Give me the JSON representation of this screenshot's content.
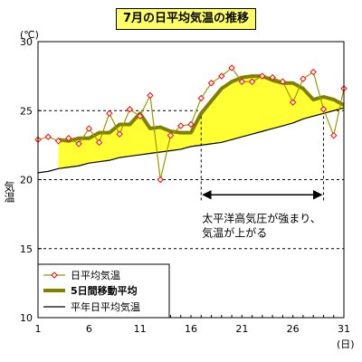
{
  "chart_data": {
    "type": "line",
    "title": "7月の日平均気温の推移",
    "ylabel": "気温",
    "y_unit": "(℃)",
    "x_unit": "(日)",
    "ylim": [
      10,
      30
    ],
    "xlim": [
      1,
      31
    ],
    "y_ticks": [
      10,
      15,
      20,
      25,
      30
    ],
    "x_ticks": [
      1,
      6,
      11,
      16,
      21,
      26,
      31
    ],
    "grid": "horizontal dashed at 15, 20, 25",
    "legend_position": "bottom-left",
    "x": [
      1,
      2,
      3,
      4,
      5,
      6,
      7,
      8,
      9,
      10,
      11,
      12,
      13,
      14,
      15,
      16,
      17,
      18,
      19,
      20,
      21,
      22,
      23,
      24,
      25,
      26,
      27,
      28,
      29,
      30,
      31
    ],
    "series": [
      {
        "name": "日平均気温",
        "color": "#999900",
        "marker_color": "#ff0000",
        "values": [
          22.9,
          23.1,
          22.8,
          23.0,
          22.6,
          23.7,
          22.7,
          24.8,
          23.3,
          25.1,
          24.6,
          26.1,
          20.0,
          23.2,
          23.9,
          24.0,
          25.9,
          27.0,
          27.5,
          28.1,
          27.1,
          27.1,
          27.5,
          27.4,
          27.1,
          25.6,
          27.3,
          27.8,
          25.1,
          23.2,
          26.6
        ]
      },
      {
        "name": "5日間移動平均",
        "color": "#808000",
        "values": [
          null,
          null,
          22.9,
          22.8,
          23.0,
          23.0,
          23.4,
          23.4,
          24.0,
          24.0,
          24.8,
          23.7,
          23.8,
          23.5,
          23.4,
          23.4,
          24.8,
          25.7,
          26.6,
          27.1,
          27.4,
          27.5,
          27.5,
          27.2,
          27.0,
          27.0,
          26.6,
          25.8,
          26.0,
          25.8,
          25.4
        ]
      },
      {
        "name": "平年日平均気温",
        "color": "#000000",
        "values": [
          20.5,
          20.6,
          20.8,
          20.9,
          21.0,
          21.2,
          21.3,
          21.4,
          21.6,
          21.7,
          21.8,
          21.9,
          22.0,
          22.1,
          22.2,
          22.4,
          22.5,
          22.6,
          22.7,
          22.9,
          23.1,
          23.3,
          23.5,
          23.7,
          23.9,
          24.1,
          24.4,
          24.6,
          24.8,
          25.0,
          25.2
        ]
      }
    ],
    "fill": {
      "between": [
        "5日間移動平均",
        "平年日平均気温"
      ],
      "color": "#ffff33"
    },
    "annotation": {
      "lines": [
        "太平洋高気圧が強まり、",
        "気温が上がる"
      ],
      "x_range": [
        17,
        29
      ],
      "dashed_verticals_at_x": [
        17,
        29
      ],
      "arrow_at_y": 18.9
    }
  }
}
